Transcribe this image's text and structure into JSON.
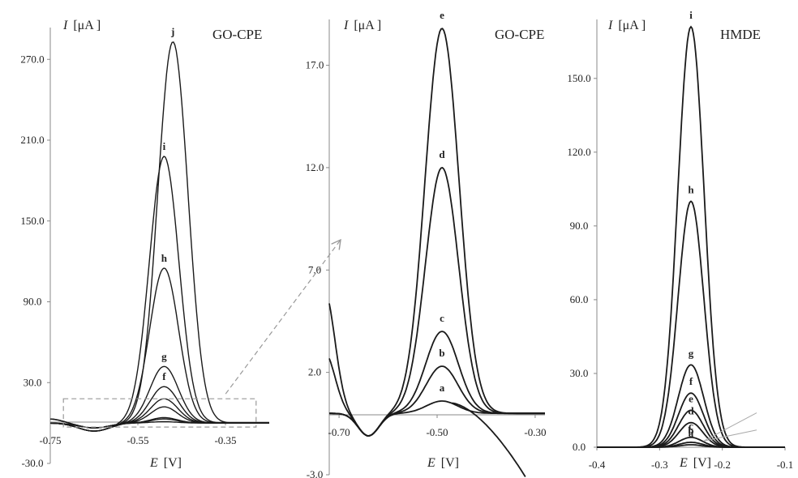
{
  "chart_data": [
    {
      "type": "line",
      "title": "GO-CPE",
      "ylabel_var": "I",
      "ylabel_unit": "[μA ]",
      "xlabel_var": "E",
      "xlabel_unit": "[V]",
      "xlim": [
        -0.75,
        -0.25
      ],
      "ylim": [
        -30,
        290
      ],
      "ytick_values": [
        -30,
        30,
        90,
        150,
        210,
        270
      ],
      "ytick_labels": [
        "-30.0",
        "30.0",
        "90.0",
        "150.0",
        "210.0",
        "270.0"
      ],
      "xtick_values": [
        -0.75,
        -0.55,
        -0.35
      ],
      "xtick_labels": [
        "-0.75",
        "-0.55",
        "-0.35"
      ],
      "zoom_box": {
        "x": [
          -0.72,
          -0.28
        ],
        "y": [
          -3,
          18
        ]
      },
      "series": [
        {
          "name": "a",
          "peak_x": -0.49,
          "peak_y": 1.0,
          "label_visible": false
        },
        {
          "name": "b",
          "peak_x": -0.49,
          "peak_y": 3.0,
          "label_visible": false
        },
        {
          "name": "c",
          "peak_x": -0.49,
          "peak_y": 4.0,
          "label_visible": false
        },
        {
          "name": "d",
          "peak_x": -0.49,
          "peak_y": 12.0,
          "label_visible": false
        },
        {
          "name": "e",
          "peak_x": -0.49,
          "peak_y": 18.0,
          "label_visible": false
        },
        {
          "name": "f",
          "peak_x": -0.49,
          "peak_y": 27.0,
          "label_visible": true
        },
        {
          "name": "g",
          "peak_x": -0.49,
          "peak_y": 42.0,
          "label_visible": true
        },
        {
          "name": "h",
          "peak_x": -0.49,
          "peak_y": 115.0,
          "label_visible": true
        },
        {
          "name": "i",
          "peak_x": -0.49,
          "peak_y": 198.0,
          "label_visible": true
        },
        {
          "name": "j",
          "peak_x": -0.47,
          "peak_y": 283.0,
          "label_visible": true
        }
      ]
    },
    {
      "type": "line",
      "title": "GO-CPE",
      "ylabel_var": "I",
      "ylabel_unit": "[μA ]",
      "xlabel_var": "E",
      "xlabel_unit": "[V]",
      "xlim": [
        -0.72,
        -0.28
      ],
      "ylim": [
        -3,
        19
      ],
      "ytick_values": [
        -3,
        2,
        7,
        12,
        17
      ],
      "ytick_labels": [
        "-3.0",
        "2.0",
        "7.0",
        "12.0",
        "17.0"
      ],
      "xtick_values": [
        -0.7,
        -0.5,
        -0.3
      ],
      "xtick_labels": [
        "-0.70",
        "-0.50",
        "-0.30"
      ],
      "series": [
        {
          "name": "a",
          "peak_x": -0.49,
          "peak_y": 0.6
        },
        {
          "name": "b",
          "peak_x": -0.49,
          "peak_y": 2.3
        },
        {
          "name": "c",
          "peak_x": -0.49,
          "peak_y": 4.0
        },
        {
          "name": "d",
          "peak_x": -0.49,
          "peak_y": 12.0
        },
        {
          "name": "e",
          "peak_x": -0.49,
          "peak_y": 18.8
        }
      ]
    },
    {
      "type": "line",
      "title": "HMDE",
      "ylabel_var": "I",
      "ylabel_unit": "[μA ]",
      "xlabel_var": "E",
      "xlabel_unit": "[V]",
      "xlim": [
        -0.4,
        -0.1
      ],
      "ylim": [
        0,
        172
      ],
      "ytick_values": [
        0,
        30,
        60,
        90,
        120,
        150
      ],
      "ytick_labels": [
        "0.0",
        "30.0",
        "60.0",
        "90.0",
        "120.0",
        "150.0"
      ],
      "xtick_values": [
        -0.4,
        -0.3,
        -0.2,
        -0.1
      ],
      "xtick_labels": [
        "-0.4",
        "-0.3",
        "-0.2",
        "-0.1"
      ],
      "series": [
        {
          "name": "a",
          "peak_x": -0.25,
          "peak_y": 1.0
        },
        {
          "name": "b",
          "peak_x": -0.25,
          "peak_y": 2.0
        },
        {
          "name": "c",
          "peak_x": -0.25,
          "peak_y": 4.0
        },
        {
          "name": "d",
          "peak_x": -0.25,
          "peak_y": 10.0
        },
        {
          "name": "e",
          "peak_x": -0.25,
          "peak_y": 15.0
        },
        {
          "name": "f",
          "peak_x": -0.25,
          "peak_y": 22.0
        },
        {
          "name": "g",
          "peak_x": -0.25,
          "peak_y": 33.5
        },
        {
          "name": "h",
          "peak_x": -0.25,
          "peak_y": 100.0
        },
        {
          "name": "i",
          "peak_x": -0.25,
          "peak_y": 171.0
        }
      ]
    }
  ]
}
